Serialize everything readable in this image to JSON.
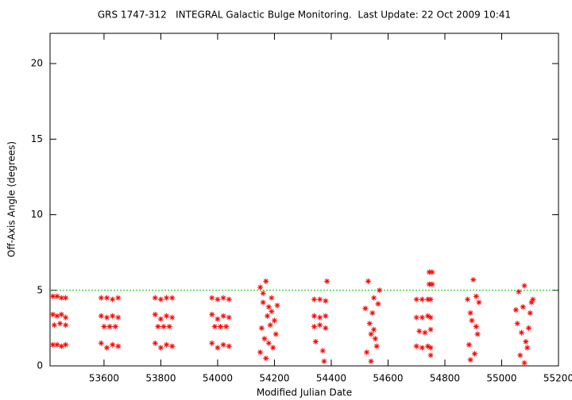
{
  "chart_data": {
    "type": "scatter",
    "title": "GRS 1747-312   INTEGRAL Galactic Bulge Monitoring.  Last Update: 22 Oct 2009 10:41",
    "x_label": "Modified Julian Date",
    "y_label": "Off-Axis Angle (degrees)",
    "color": "#ff0000",
    "xlim": [
      53410,
      55200
    ],
    "xticks": [
      53600,
      53800,
      54000,
      54200,
      54400,
      54600,
      54800,
      55000,
      55200
    ],
    "ylim": [
      0,
      22
    ],
    "yticks": [
      0,
      5,
      10,
      15,
      20
    ],
    "reference_line": {
      "value": 5,
      "color": "#00c000"
    },
    "x": [
      53420,
      53435,
      53450,
      53465,
      53420,
      53435,
      53450,
      53465,
      53425,
      53445,
      53465,
      53420,
      53435,
      53450,
      53465,
      53590,
      53610,
      53630,
      53650,
      53590,
      53610,
      53630,
      53650,
      53600,
      53620,
      53640,
      53590,
      53610,
      53630,
      53650,
      53780,
      53800,
      53820,
      53840,
      53780,
      53800,
      53820,
      53840,
      53790,
      53810,
      53830,
      53780,
      53800,
      53820,
      53840,
      53980,
      54000,
      54020,
      54040,
      53980,
      54000,
      54020,
      54040,
      53990,
      54010,
      54030,
      53980,
      54000,
      54020,
      54040,
      54150,
      54160,
      54170,
      54180,
      54190,
      54200,
      54210,
      54155,
      54165,
      54175,
      54185,
      54195,
      54205,
      54150,
      54170,
      54190,
      54160,
      54180,
      54340,
      54360,
      54380,
      54340,
      54360,
      54380,
      54340,
      54360,
      54380,
      54345,
      54370,
      54375,
      54385,
      54520,
      54530,
      54540,
      54550,
      54560,
      54570,
      54525,
      54535,
      54545,
      54555,
      54565,
      54540,
      54550,
      54700,
      54720,
      54740,
      54750,
      54700,
      54720,
      54740,
      54750,
      54710,
      54730,
      54750,
      54700,
      54720,
      54740,
      54750,
      54745,
      54755,
      54745,
      54755,
      54750,
      54880,
      54890,
      54900,
      54910,
      54920,
      54885,
      54895,
      54905,
      54915,
      54890,
      54910,
      55050,
      55060,
      55070,
      55080,
      55090,
      55100,
      55110,
      55055,
      55065,
      55075,
      55085,
      55095,
      55105,
      55080
    ],
    "values": [
      4.6,
      4.6,
      4.5,
      4.5,
      3.4,
      3.3,
      3.4,
      3.2,
      2.7,
      2.8,
      2.7,
      1.4,
      1.4,
      1.3,
      1.4,
      4.5,
      4.5,
      4.4,
      4.5,
      3.3,
      3.2,
      3.3,
      3.2,
      2.6,
      2.6,
      2.6,
      1.5,
      1.2,
      1.4,
      1.3,
      4.5,
      4.4,
      4.5,
      4.5,
      3.4,
      3.1,
      3.3,
      3.2,
      2.6,
      2.6,
      2.6,
      1.5,
      1.2,
      1.4,
      1.3,
      4.5,
      4.4,
      4.5,
      4.4,
      3.4,
      3.1,
      3.3,
      3.2,
      2.6,
      2.6,
      2.6,
      1.5,
      1.2,
      1.4,
      1.3,
      5.2,
      4.8,
      5.6,
      3.9,
      4.5,
      3.0,
      4.0,
      2.5,
      1.8,
      3.3,
      2.7,
      1.2,
      2.1,
      0.9,
      0.5,
      3.6,
      4.2,
      1.5,
      4.4,
      4.4,
      4.3,
      3.3,
      3.2,
      3.3,
      2.6,
      2.7,
      2.5,
      1.6,
      1.0,
      0.3,
      5.6,
      3.8,
      5.6,
      2.1,
      4.5,
      1.3,
      5.0,
      0.9,
      2.8,
      3.5,
      1.8,
      4.1,
      0.3,
      2.4,
      4.4,
      4.4,
      4.4,
      4.4,
      3.2,
      3.2,
      3.3,
      3.2,
      2.3,
      2.2,
      2.4,
      1.3,
      1.2,
      1.3,
      1.2,
      6.2,
      6.2,
      5.4,
      5.4,
      0.7,
      4.4,
      3.5,
      5.7,
      2.6,
      4.2,
      1.4,
      3.0,
      0.8,
      2.1,
      0.4,
      4.6,
      3.7,
      4.9,
      2.2,
      5.3,
      1.2,
      3.5,
      4.4,
      2.8,
      0.7,
      3.9,
      1.6,
      2.5,
      4.2,
      0.2
    ]
  }
}
